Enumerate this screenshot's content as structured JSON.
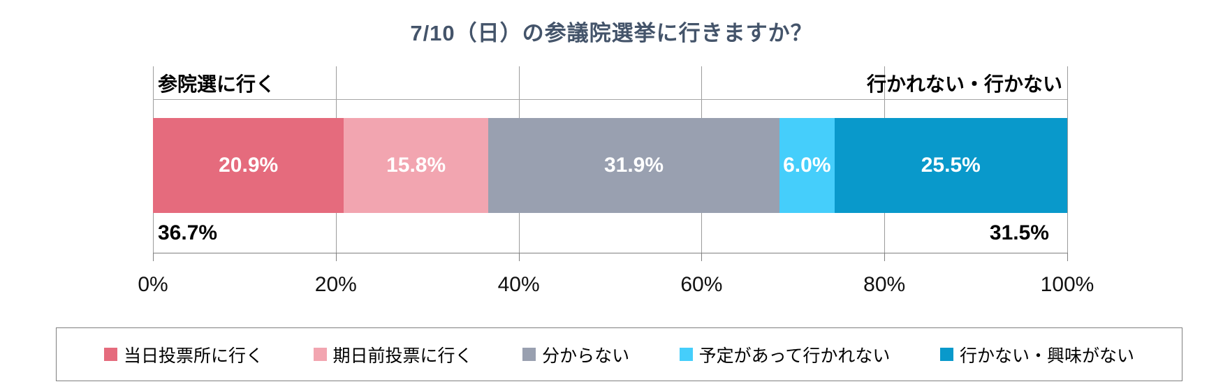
{
  "title": "7/10（日）の参議院選挙に行きますか？",
  "chart_data": {
    "type": "bar",
    "subtype": "horizontal-stacked-100",
    "title": "7/10（日）の参議院選挙に行きますか？",
    "series": [
      {
        "name": "当日投票所に行く",
        "value": 20.9,
        "label": "20.9%",
        "color": "#E56B7D"
      },
      {
        "name": "期日前投票に行く",
        "value": 15.8,
        "label": "15.8%",
        "color": "#F2A5B0"
      },
      {
        "name": "分からない",
        "value": 31.9,
        "label": "31.9%",
        "color": "#99A0B0"
      },
      {
        "name": "予定があって行かれない",
        "value": 6.0,
        "label": "6.0%",
        "color": "#45CEFB"
      },
      {
        "name": "行かない・興味がない",
        "value": 25.5,
        "label": "25.5%",
        "color": "#0999CB"
      }
    ],
    "group_labels": {
      "left": "参院選に行く",
      "right": "行かれない・行かない"
    },
    "group_totals": {
      "left": "36.7%",
      "right": "31.5%"
    },
    "x_axis": {
      "range": [
        0,
        100
      ],
      "tick_step": 20,
      "ticks": [
        "0%",
        "20%",
        "40%",
        "60%",
        "80%",
        "100%"
      ]
    },
    "grid": true,
    "legend_position": "bottom",
    "colors": {
      "title_text": "#44546A",
      "gridline": "#9B9B9B",
      "axis_line": "#7F7F7F",
      "bar_label_text": "#FFFFFF",
      "label_text": "#000000"
    }
  }
}
